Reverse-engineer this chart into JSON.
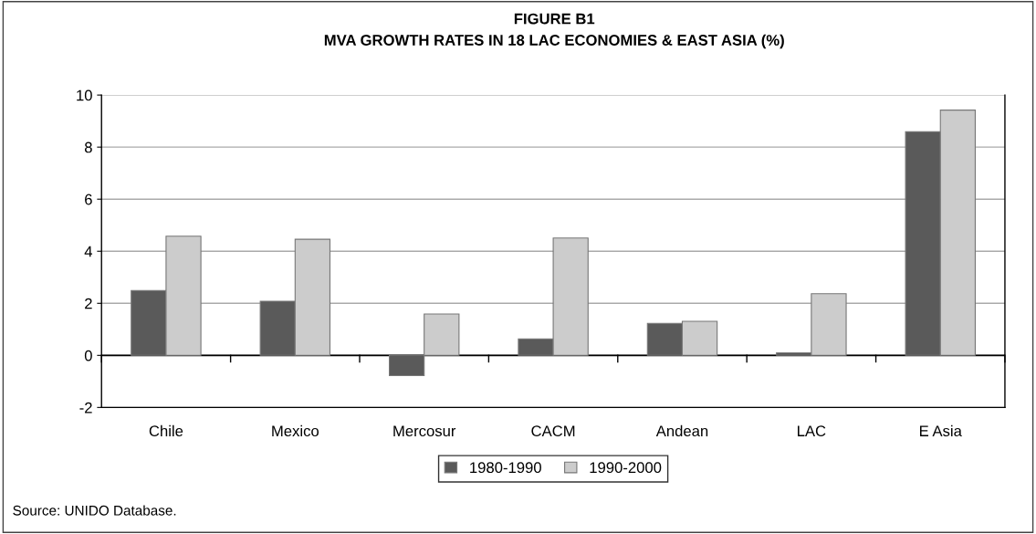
{
  "chart_data": {
    "type": "bar",
    "title": "FIGURE B1",
    "subtitle": "MVA GROWTH RATES IN 18 LAC ECONOMIES & EAST ASIA (%)",
    "categories": [
      "Chile",
      "Mexico",
      "Mercosur",
      "CACM",
      "Andean",
      "LAC",
      "E Asia"
    ],
    "series": [
      {
        "name": "1980-1990",
        "color": "#5a5a5a",
        "values": [
          2.49,
          2.08,
          -0.78,
          0.63,
          1.23,
          0.1,
          8.59
        ]
      },
      {
        "name": "1990-2000",
        "color": "#cccccc",
        "values": [
          4.58,
          4.46,
          1.59,
          4.51,
          1.31,
          2.37,
          9.42
        ]
      }
    ],
    "ylim": [
      -2,
      10
    ],
    "yticks": [
      -2,
      0,
      2,
      4,
      6,
      8,
      10
    ],
    "grid": "y",
    "legend": "bottom",
    "annotations": [
      "Source: UNIDO Database."
    ]
  }
}
